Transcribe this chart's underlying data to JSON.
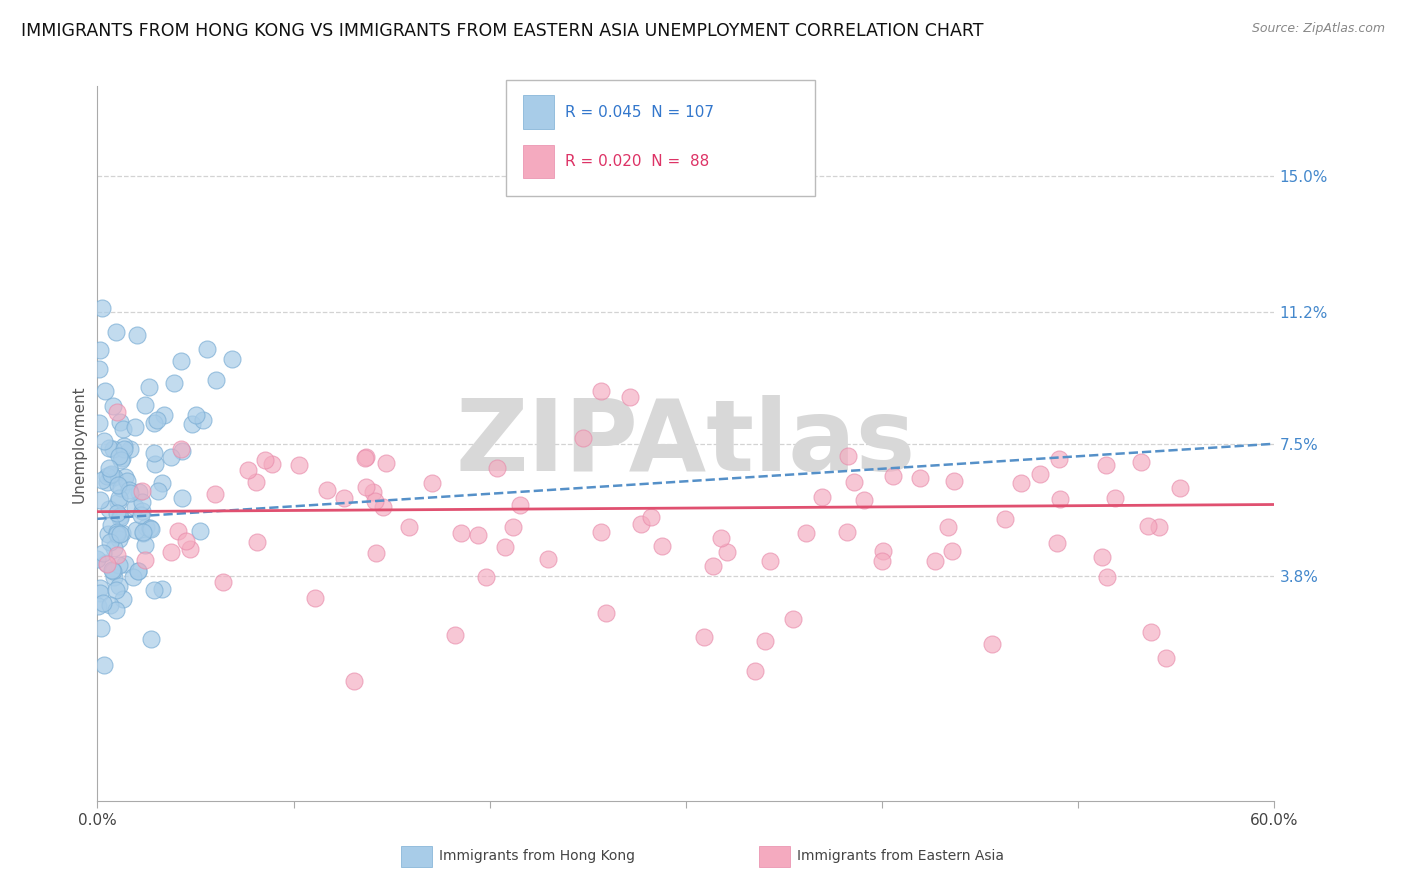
{
  "title": "IMMIGRANTS FROM HONG KONG VS IMMIGRANTS FROM EASTERN ASIA UNEMPLOYMENT CORRELATION CHART",
  "source": "Source: ZipAtlas.com",
  "ylabel": "Unemployment",
  "xlim": [
    0.0,
    0.6
  ],
  "ylim": [
    -0.025,
    0.175
  ],
  "ytick_positions": [
    0.038,
    0.075,
    0.112,
    0.15
  ],
  "ytick_labels": [
    "3.8%",
    "7.5%",
    "11.2%",
    "15.0%"
  ],
  "hk_R": 0.045,
  "hk_N": 107,
  "ea_R": 0.02,
  "ea_N": 88,
  "hk_color": "#a8cce8",
  "hk_edge_color": "#7aadd4",
  "ea_color": "#f4aabf",
  "ea_edge_color": "#e88aaa",
  "hk_line_color": "#5590c8",
  "ea_line_color": "#e05070",
  "background_color": "#ffffff",
  "grid_color": "#c8c8c8",
  "watermark": "ZIPAtlas",
  "watermark_color": "#d8d8d8",
  "title_fontsize": 12.5,
  "legend_label_hk": "Immigrants from Hong Kong",
  "legend_label_ea": "Immigrants from Eastern Asia",
  "hk_trend_y0": 0.054,
  "hk_trend_y1": 0.075,
  "ea_trend_y0": 0.056,
  "ea_trend_y1": 0.058
}
